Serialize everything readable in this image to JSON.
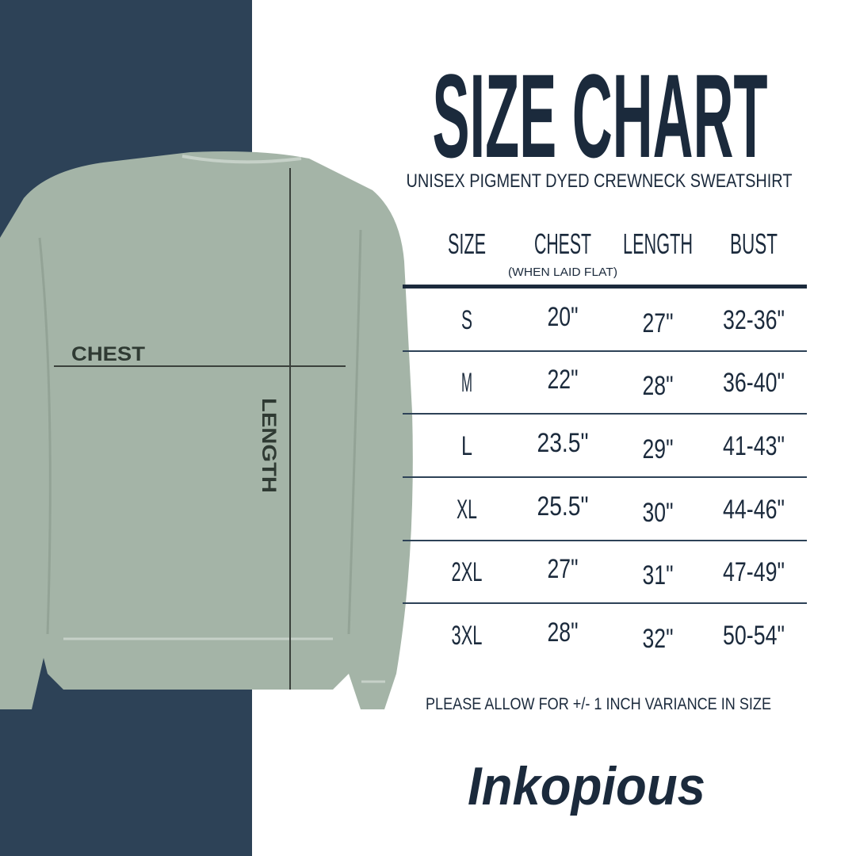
{
  "title": "SIZE CHART",
  "subtitle": "UNISEX PIGMENT DYED CREWNECK SWEATSHIRT",
  "colors": {
    "navy_panel": "#2d4257",
    "text": "#1b2a3c",
    "garment": "#a4b4a7"
  },
  "diagram": {
    "chest_label": "CHEST",
    "length_label": "LENGTH"
  },
  "table": {
    "headers": [
      "SIZE",
      "CHEST",
      "LENGTH",
      "BUST"
    ],
    "chest_note": "(WHEN LAID FLAT)",
    "rows": [
      [
        "S",
        "20\"",
        "27\"",
        "32-36\""
      ],
      [
        "M",
        "22\"",
        "28\"",
        "36-40\""
      ],
      [
        "L",
        "23.5\"",
        "29\"",
        "41-43\""
      ],
      [
        "XL",
        "25.5\"",
        "30\"",
        "44-46\""
      ],
      [
        "2XL",
        "27\"",
        "31\"",
        "47-49\""
      ],
      [
        "3XL",
        "28\"",
        "32\"",
        "50-54\""
      ]
    ]
  },
  "variance_note": "PLEASE ALLOW FOR +/- 1 INCH VARIANCE IN SIZE",
  "brand": "Inkopious"
}
